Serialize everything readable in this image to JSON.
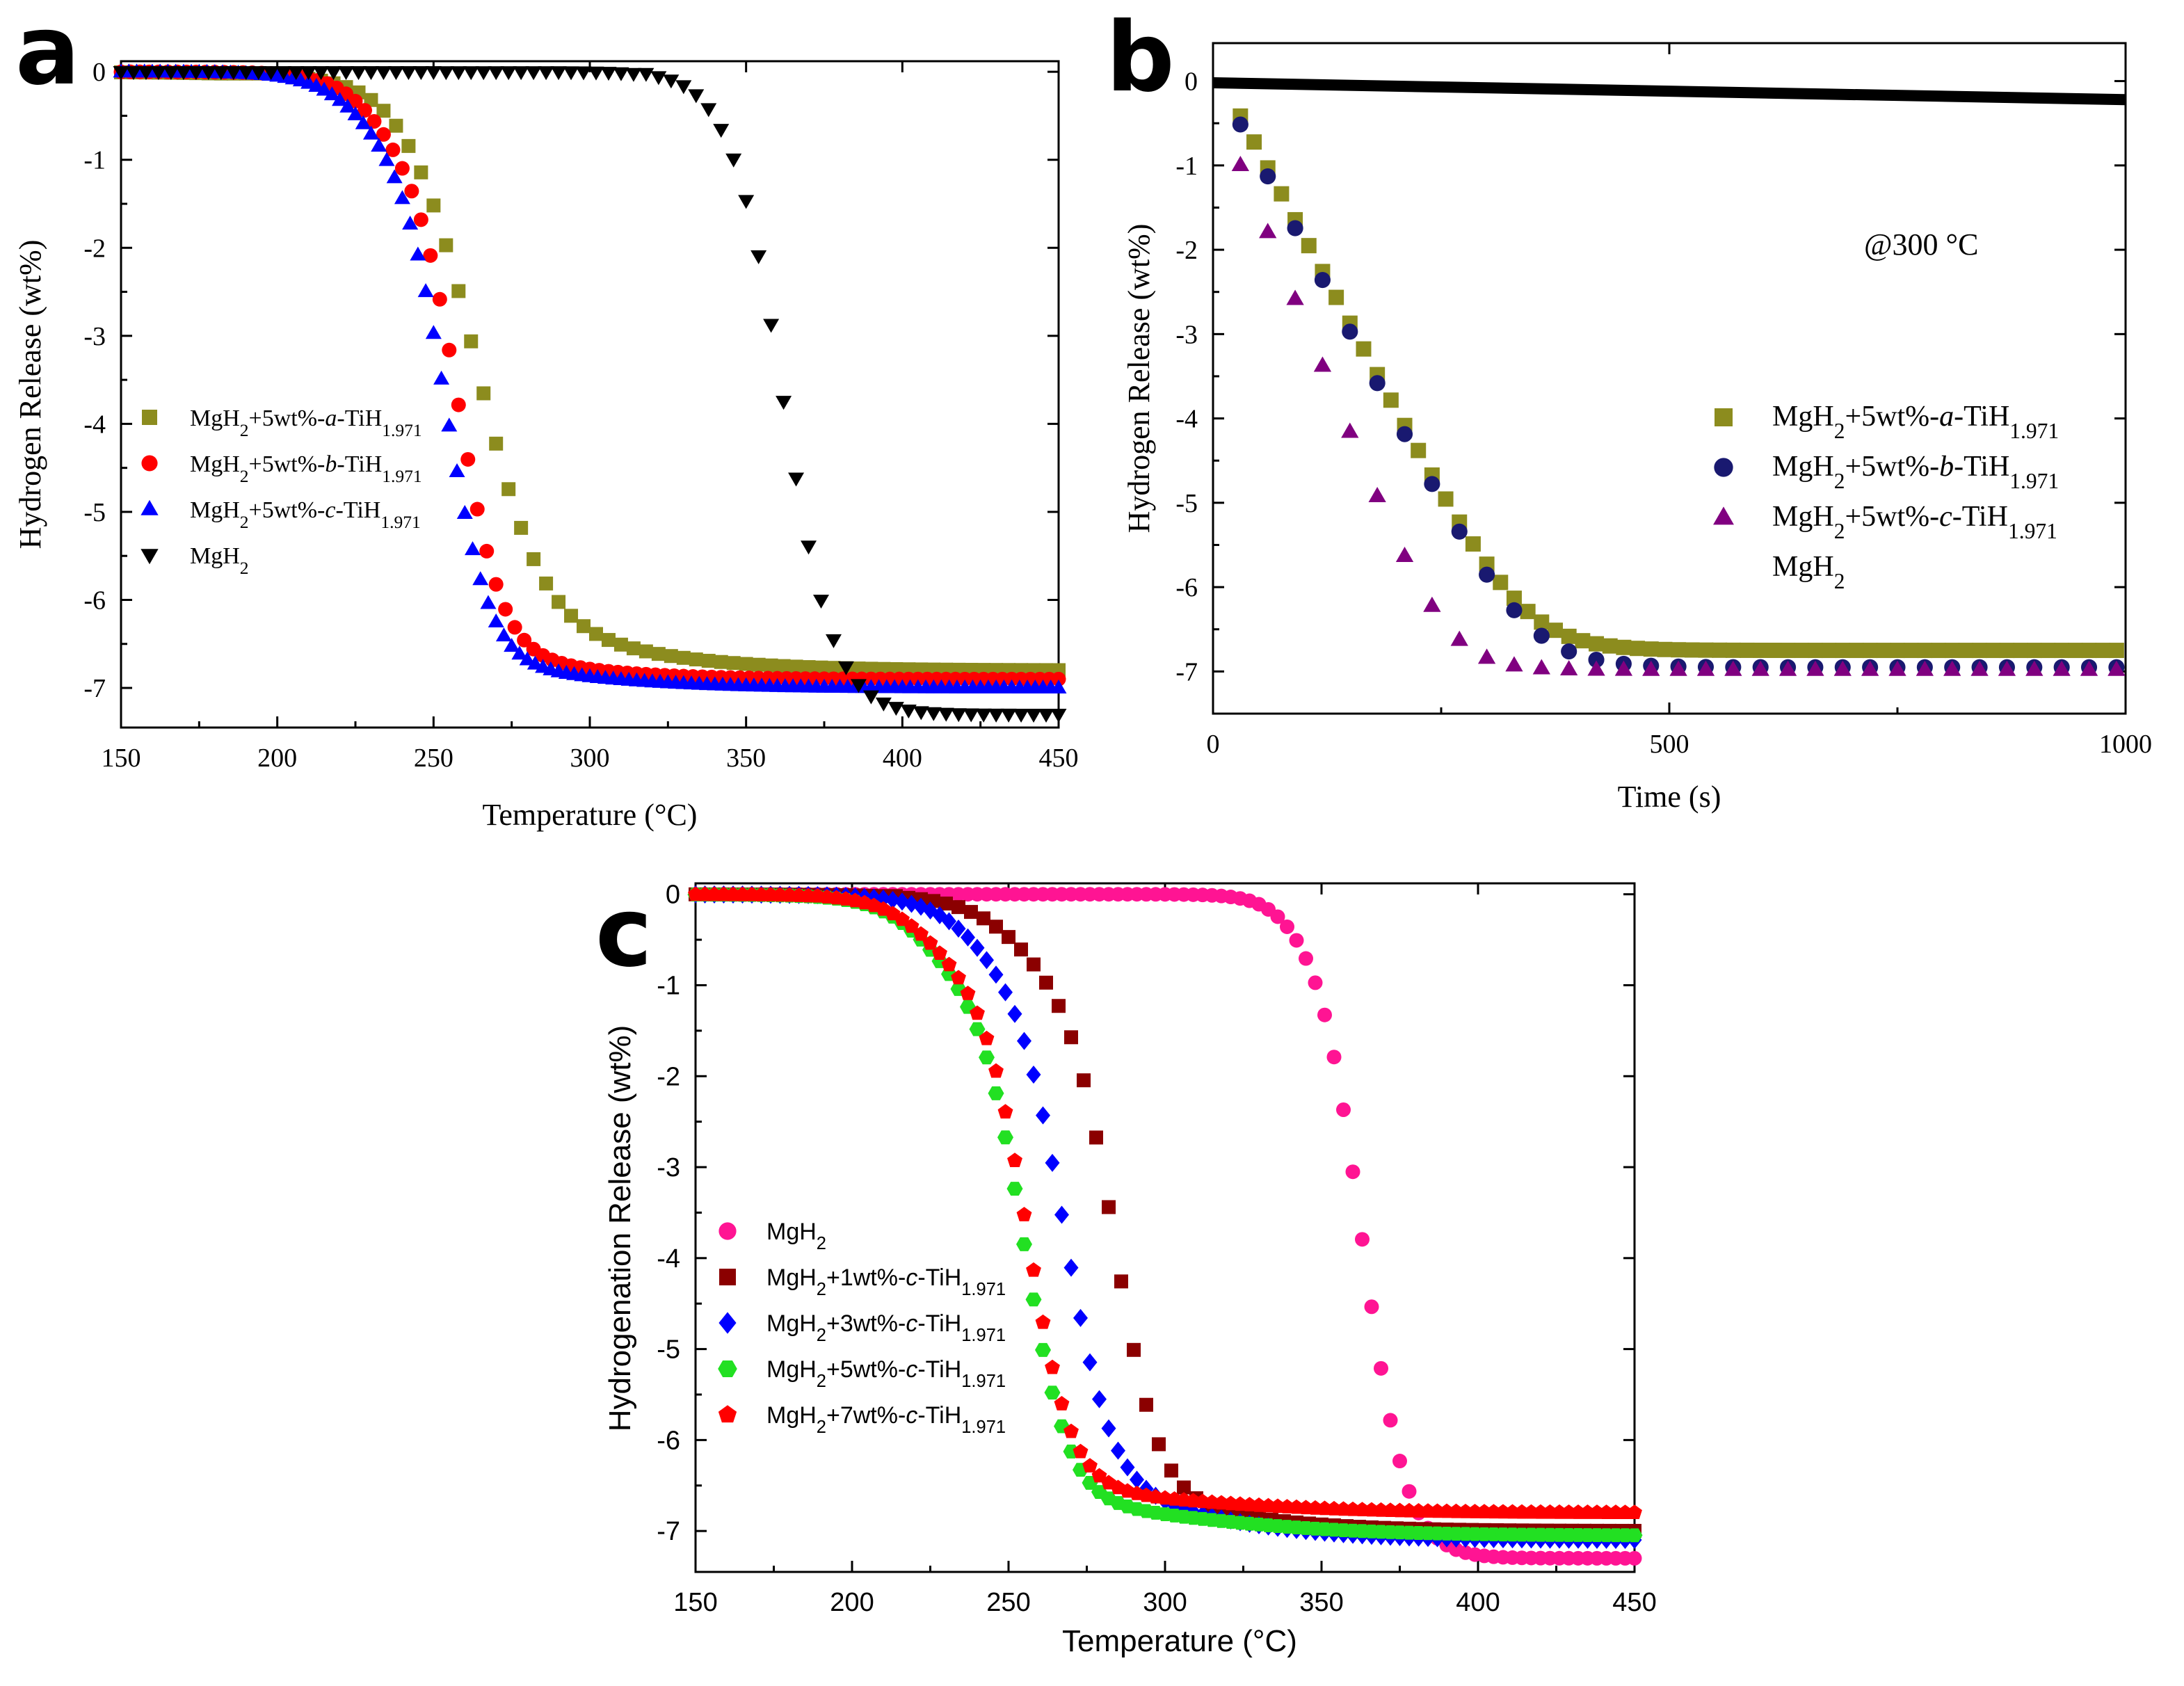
{
  "chart_data": [
    {
      "panel": "a",
      "type": "scatter",
      "title": "",
      "xlabel": "Temperature (°C)",
      "ylabel": "Hydrogen Release (wt%)",
      "xlim": [
        150,
        450
      ],
      "ylim": [
        -7.45,
        0.12
      ],
      "xticks": [
        150,
        200,
        250,
        300,
        350,
        400,
        450
      ],
      "yticks": [
        0,
        -1,
        -2,
        -3,
        -4,
        -5,
        -6,
        -7
      ],
      "legend_position": "center-left",
      "series": [
        {
          "name": "MgH2+5wt%-a-TiH1.971",
          "base": "MgH",
          "sub1": "2",
          "mid": "+5wt%-",
          "ital": "a",
          "post": "-TiH",
          "sub2": "1.971",
          "color": "#8c8c1e",
          "marker": "square",
          "model": "sigmoid",
          "x_start": 150,
          "x_end": 450,
          "step": 4,
          "onset": 205,
          "lag_center": 247,
          "lag_scale": 8,
          "lag_amp": -0.6,
          "center": 265,
          "scale": 10,
          "amp": -5.4,
          "tail_center": 285,
          "tail_scale": 28,
          "tail_amp": -0.8
        },
        {
          "name": "MgH2+5wt%-b-TiH1.971",
          "base": "MgH",
          "sub1": "2",
          "mid": "+5wt%-",
          "ital": "b",
          "post": "-TiH",
          "sub2": "1.971",
          "color": "#ff0000",
          "marker": "circle",
          "model": "sigmoid",
          "x_start": 150,
          "x_end": 450,
          "step": 3,
          "onset": 195,
          "lag_center": 232,
          "lag_scale": 8,
          "lag_amp": -0.9,
          "center": 258,
          "scale": 7,
          "amp": -5.7,
          "tail_center": 285,
          "tail_scale": 22,
          "tail_amp": -0.3
        },
        {
          "name": "MgH2+5wt%-c-TiH1.971",
          "base": "MgH",
          "sub1": "2",
          "mid": "+5wt%-",
          "ital": "c",
          "post": "-TiH",
          "sub2": "1.971",
          "color": "#0000ff",
          "marker": "triangle-up",
          "model": "sigmoid",
          "x_start": 150,
          "x_end": 450,
          "step": 2.5,
          "onset": 185,
          "lag_center": 228,
          "lag_scale": 9,
          "lag_amp": -0.9,
          "center": 254,
          "scale": 7,
          "amp": -5.8,
          "tail_center": 290,
          "tail_scale": 25,
          "tail_amp": -0.3
        },
        {
          "name": "MgH2",
          "base": "MgH",
          "sub1": "2",
          "mid": "",
          "ital": "",
          "post": "",
          "sub2": "",
          "color": "#000000",
          "marker": "triangle-down",
          "model": "sigmoid",
          "x_start": 150,
          "x_end": 450,
          "step": 4,
          "onset": 320,
          "lag_center": 340,
          "lag_scale": 6,
          "lag_amp": -0.2,
          "center": 362,
          "scale": 8,
          "amp": -7.1,
          "tail_center": 380,
          "tail_scale": 10,
          "tail_amp": 0
        }
      ]
    },
    {
      "panel": "b",
      "type": "scatter",
      "title": "",
      "xlabel": "Time (s)",
      "ylabel": "Hydrogen Release (wt%)",
      "xlim": [
        0,
        1000
      ],
      "ylim": [
        -7.5,
        0.45
      ],
      "xticks": [
        0,
        500,
        1000
      ],
      "yticks": [
        0,
        -1,
        -2,
        -3,
        -4,
        -5,
        -6,
        -7
      ],
      "annotation": "@300 °C",
      "legend_position": "center-right",
      "series": [
        {
          "name": "MgH2+5wt%-a-TiH1.971",
          "base": "MgH",
          "sub1": "2",
          "mid": "+5wt%-",
          "ital": "a",
          "post": "-TiH",
          "sub2": "1.971",
          "color": "#8c8c1e",
          "marker": "square",
          "model": "ramp",
          "x_start": 30,
          "x_end": 1000,
          "step": 15,
          "rate": -0.0205,
          "y0": 0.2,
          "final": -6.75,
          "knee": 340
        },
        {
          "name": "MgH2+5wt%-b-TiH1.971",
          "base": "MgH",
          "sub1": "2",
          "mid": "+5wt%-",
          "ital": "b",
          "post": "-TiH",
          "sub2": "1.971",
          "color": "#191970",
          "marker": "circle",
          "model": "ramp",
          "x_start": 30,
          "x_end": 1000,
          "step": 30,
          "rate": -0.0205,
          "y0": 0.1,
          "final": -6.95,
          "knee": 330
        },
        {
          "name": "MgH2+5wt%-c-TiH1.971",
          "base": "MgH",
          "sub1": "2",
          "mid": "+5wt%-",
          "ital": "c",
          "post": "-TiH",
          "sub2": "1.971",
          "color": "#800080",
          "marker": "triangle-up",
          "model": "ramp",
          "x_start": 30,
          "x_end": 1000,
          "step": 30,
          "rate": -0.0265,
          "y0": -0.2,
          "final": -6.98,
          "knee": 280
        },
        {
          "name": "MgH2",
          "base": "MgH",
          "sub1": "2",
          "mid": "",
          "ital": "",
          "post": "",
          "sub2": "",
          "color": "#000000",
          "marker": "none",
          "model": "line",
          "x": [
            0,
            1000
          ],
          "y": [
            -0.02,
            -0.22
          ]
        }
      ]
    },
    {
      "panel": "c",
      "type": "scatter",
      "title": "",
      "xlabel": "Temperature (°C)",
      "ylabel": "Hydrogenation Release (wt%)",
      "xlim": [
        150,
        450
      ],
      "ylim": [
        -7.45,
        0.12
      ],
      "xticks": [
        150,
        200,
        250,
        300,
        350,
        400,
        450
      ],
      "yticks": [
        0,
        -1,
        -2,
        -3,
        -4,
        -5,
        -6,
        -7
      ],
      "legend_position": "center-left",
      "series": [
        {
          "name": "MgH2",
          "base": "MgH",
          "sub1": "2",
          "mid": "",
          "ital": "",
          "post": "",
          "sub2": "",
          "color": "#ff1493",
          "marker": "circle",
          "model": "sigmoid",
          "x_start": 150,
          "x_end": 450,
          "step": 3,
          "onset": 320,
          "lag_center": 340,
          "lag_scale": 6,
          "lag_amp": -0.3,
          "center": 363,
          "scale": 7,
          "amp": -7.0,
          "tail_center": 385,
          "tail_scale": 10,
          "tail_amp": 0
        },
        {
          "name": "MgH2+1wt%-c-TiH1.971",
          "base": "MgH",
          "sub1": "2",
          "mid": "+1wt%-",
          "ital": "c",
          "post": "-TiH",
          "sub2": "1.971",
          "color": "#8b0000",
          "marker": "square",
          "model": "sigmoid",
          "x_start": 150,
          "x_end": 450,
          "step": 4,
          "onset": 215,
          "lag_center": 255,
          "lag_scale": 10,
          "lag_amp": -1.0,
          "center": 284,
          "scale": 7,
          "amp": -5.5,
          "tail_center": 305,
          "tail_scale": 25,
          "tail_amp": -0.5
        },
        {
          "name": "MgH2+3wt%-c-TiH1.971",
          "base": "MgH",
          "sub1": "2",
          "mid": "+3wt%-",
          "ital": "c",
          "post": "-TiH",
          "sub2": "1.971",
          "color": "#0000ff",
          "marker": "diamond",
          "model": "sigmoid",
          "x_start": 150,
          "x_end": 450,
          "step": 3,
          "onset": 195,
          "lag_center": 240,
          "lag_scale": 9,
          "lag_amp": -0.8,
          "center": 268,
          "scale": 7.5,
          "amp": -5.6,
          "tail_center": 300,
          "tail_scale": 25,
          "tail_amp": -0.7
        },
        {
          "name": "MgH2+5wt%-c-TiH1.971",
          "base": "MgH",
          "sub1": "2",
          "mid": "+5wt%-",
          "ital": "c",
          "post": "-TiH",
          "sub2": "1.971",
          "color": "#22e022",
          "marker": "hexagon",
          "model": "sigmoid",
          "x_start": 150,
          "x_end": 450,
          "step": 3,
          "onset": 185,
          "lag_center": 225,
          "lag_scale": 9,
          "lag_amp": -1.0,
          "center": 255,
          "scale": 7,
          "amp": -5.6,
          "tail_center": 300,
          "tail_scale": 30,
          "tail_amp": -0.45
        },
        {
          "name": "MgH2+7wt%-c-TiH1.971",
          "base": "MgH",
          "sub1": "2",
          "mid": "+7wt%-",
          "ital": "c",
          "post": "-TiH",
          "sub2": "1.971",
          "color": "#ff0000",
          "marker": "pentagon",
          "model": "sigmoid",
          "x_start": 150,
          "x_end": 450,
          "step": 3,
          "onset": 190,
          "lag_center": 225,
          "lag_scale": 9,
          "lag_amp": -0.9,
          "center": 256,
          "scale": 7,
          "amp": -5.6,
          "tail_center": 300,
          "tail_scale": 30,
          "tail_amp": -0.3
        }
      ]
    }
  ]
}
